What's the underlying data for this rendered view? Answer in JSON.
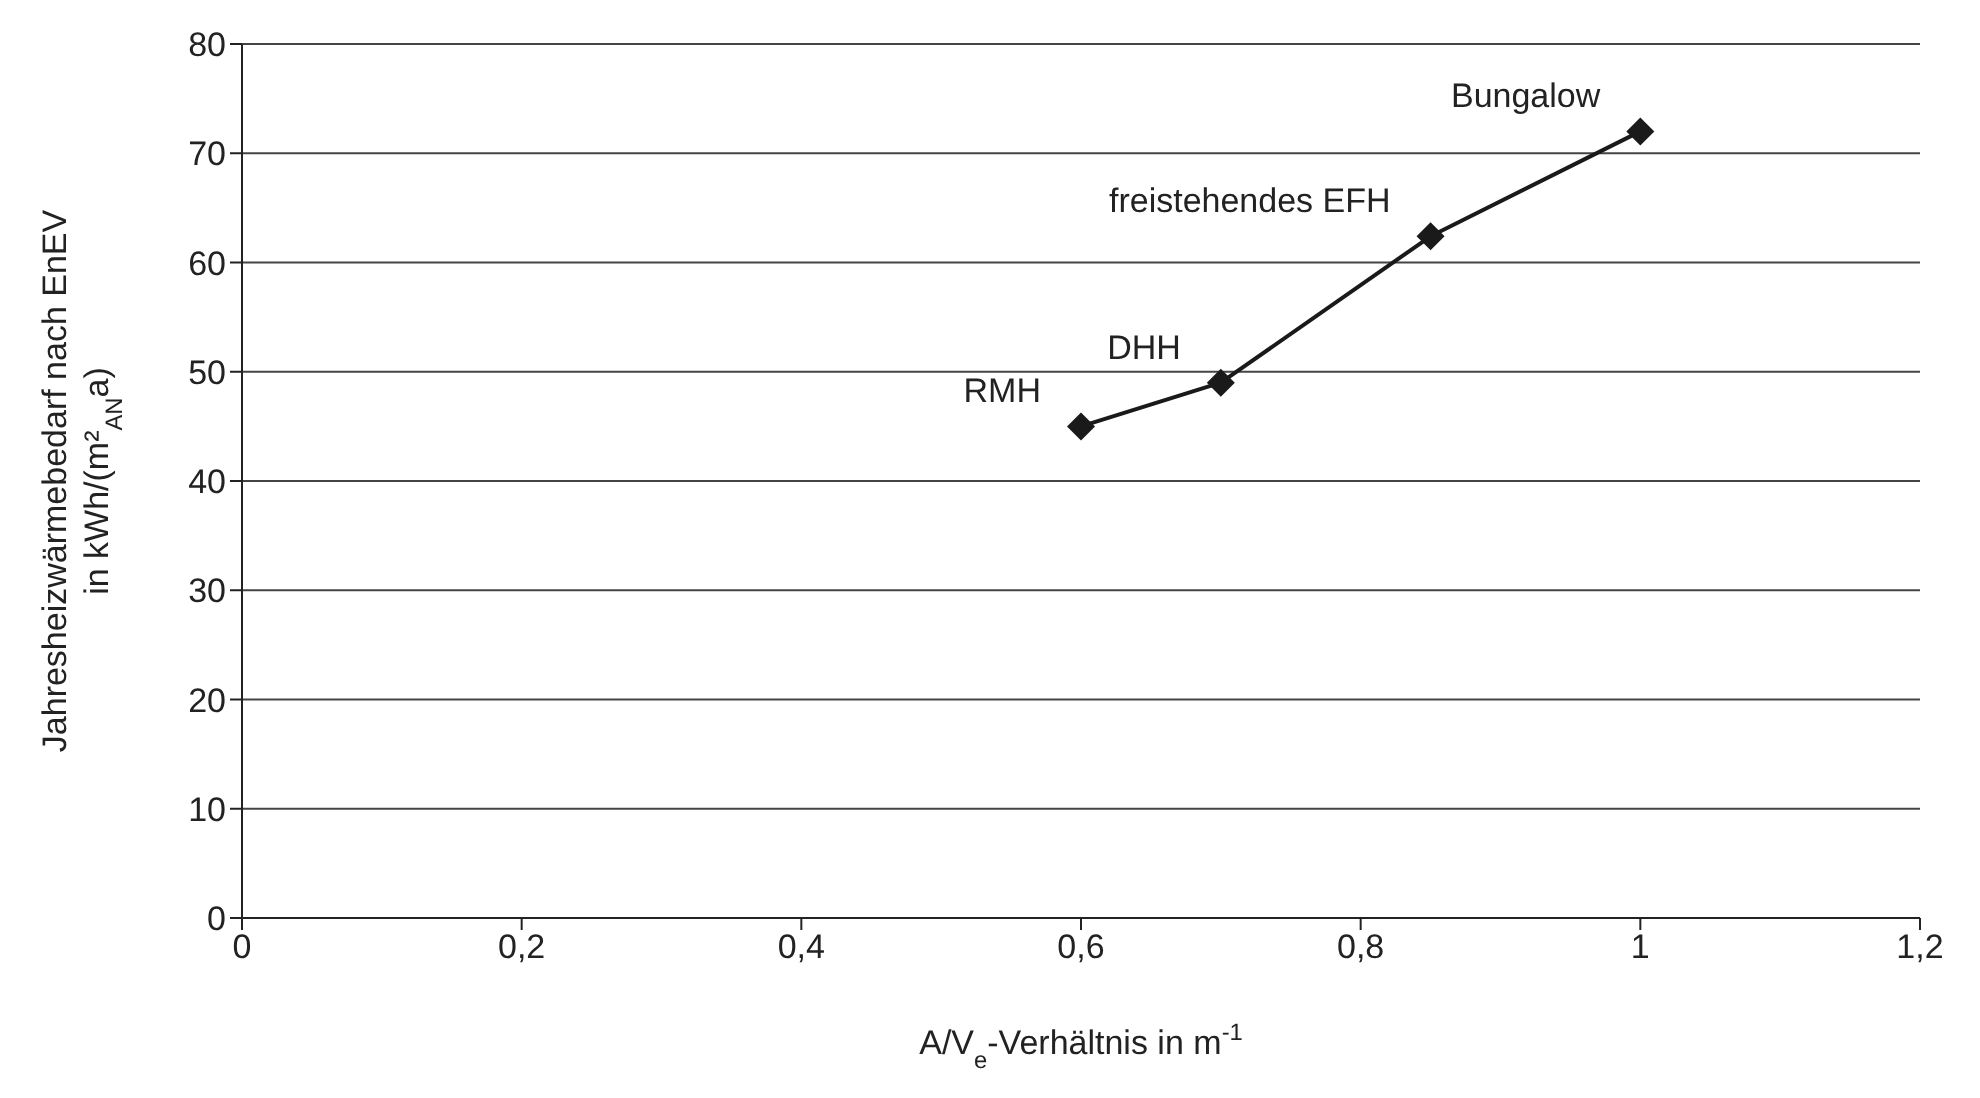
{
  "chart_data": {
    "type": "line",
    "xlabel": "A/V$_{e}$-Verhältnis in m$^{-1}$",
    "ylabel": "Jahresheizwärmebedarf nach EnEV\nin kWh/(m²$_{AN}$a)",
    "x": [
      0.6,
      0.7,
      0.85,
      1.0
    ],
    "series": [
      {
        "color": "#1a1a1a",
        "values": [
          45,
          49,
          62.4,
          72
        ]
      }
    ],
    "xlim": [
      0,
      1.2
    ],
    "xticks": [
      0,
      {
        "value": 0.2,
        "label": "0,2"
      },
      {
        "value": 0.4,
        "label": "0,4"
      },
      {
        "value": 0.6,
        "label": "0,6"
      },
      {
        "value": 0.8,
        "label": "0,8"
      },
      1,
      {
        "value": 1.2,
        "label": "1,2"
      }
    ],
    "ylim": [
      0,
      80
    ],
    "yticks": [
      0,
      10,
      20,
      30,
      40,
      50,
      60,
      70,
      80
    ],
    "grid": "y",
    "marker": "diamond",
    "line_style": "solid",
    "legend": false,
    "annotations": [
      {
        "text": "RMH",
        "x": 0.6,
        "y": 45
      },
      {
        "text": "DHH",
        "x": 0.7,
        "y": 49
      },
      {
        "text": "freistehendes EFH",
        "x": 0.85,
        "y": 62.4
      },
      {
        "text": "Bungalow",
        "x": 1.0,
        "y": 72
      }
    ]
  }
}
